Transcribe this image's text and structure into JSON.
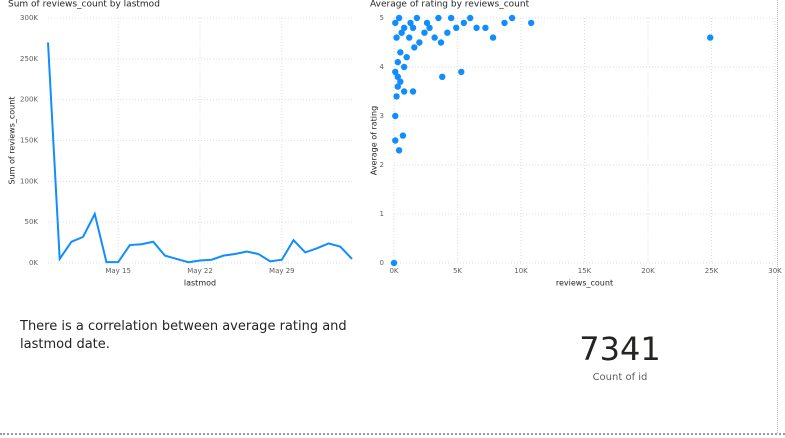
{
  "chart_data": [
    {
      "type": "line",
      "title": "Sum of reviews_count by lastmod",
      "x_label": "lastmod",
      "y_label": "Sum of reviews_count",
      "color": "#118dff",
      "grid": true,
      "categories": [
        null,
        null,
        null,
        null,
        null,
        null,
        "May 15",
        null,
        null,
        null,
        null,
        null,
        null,
        "May 22",
        null,
        null,
        null,
        null,
        null,
        null,
        "May 29",
        null,
        null,
        null,
        null,
        null,
        null
      ],
      "values": [
        270000,
        5000,
        26000,
        32000,
        60000,
        1000,
        1000,
        22000,
        23000,
        26000,
        9000,
        5000,
        1000,
        3000,
        4000,
        9000,
        11000,
        14000,
        11000,
        2000,
        4000,
        28000,
        13000,
        18000,
        24000,
        20000,
        5000
      ],
      "ylim": [
        0,
        300000
      ],
      "yticks": [
        {
          "value": 0,
          "label": "0K"
        },
        {
          "value": 50000,
          "label": "50K"
        },
        {
          "value": 100000,
          "label": "100K"
        },
        {
          "value": 150000,
          "label": "150K"
        },
        {
          "value": 200000,
          "label": "200K"
        },
        {
          "value": 250000,
          "label": "250K"
        },
        {
          "value": 300000,
          "label": "300K"
        }
      ]
    },
    {
      "type": "scatter",
      "title": "Average of rating by reviews_count",
      "x_label": "reviews_count",
      "y_label": "Average of rating",
      "color": "#118dff",
      "grid": true,
      "x": [
        0,
        100,
        100,
        400,
        700,
        200,
        800,
        1500,
        300,
        500,
        3800,
        5300,
        24900,
        10800,
        9300,
        8700,
        7800,
        7200,
        6500,
        5500,
        4900,
        4200,
        3700,
        3200,
        2800,
        2400,
        2000,
        1600,
        1200,
        1000,
        800,
        500,
        300,
        200,
        100,
        400,
        800,
        1300,
        1800,
        2600,
        3500,
        4500,
        6000,
        600,
        1500,
        100,
        300
      ],
      "values": [
        0,
        3.0,
        2.5,
        2.3,
        2.6,
        3.4,
        3.5,
        3.5,
        3.8,
        3.7,
        3.8,
        3.9,
        4.6,
        4.9,
        5.0,
        4.9,
        4.6,
        4.8,
        4.8,
        4.9,
        4.8,
        4.7,
        4.5,
        4.6,
        4.8,
        4.7,
        4.5,
        4.4,
        4.6,
        4.2,
        4.0,
        4.3,
        4.1,
        4.6,
        4.9,
        5.0,
        4.8,
        4.9,
        5.0,
        4.9,
        5.0,
        5.0,
        5.0,
        4.7,
        4.8,
        3.9,
        3.6
      ],
      "xlim": [
        0,
        30000
      ],
      "xticks": [
        {
          "value": 0,
          "label": "0K"
        },
        {
          "value": 5000,
          "label": "5K"
        },
        {
          "value": 10000,
          "label": "10K"
        },
        {
          "value": 15000,
          "label": "15K"
        },
        {
          "value": 20000,
          "label": "20K"
        },
        {
          "value": 25000,
          "label": "25K"
        },
        {
          "value": 30000,
          "label": "30K"
        }
      ],
      "ylim": [
        0,
        5
      ],
      "yticks": [
        0,
        1,
        2,
        3,
        4,
        5
      ]
    }
  ],
  "textbox": "There is a correlation between average rating and lastmod date.",
  "card": {
    "value": 7341,
    "label": "Count of id"
  }
}
